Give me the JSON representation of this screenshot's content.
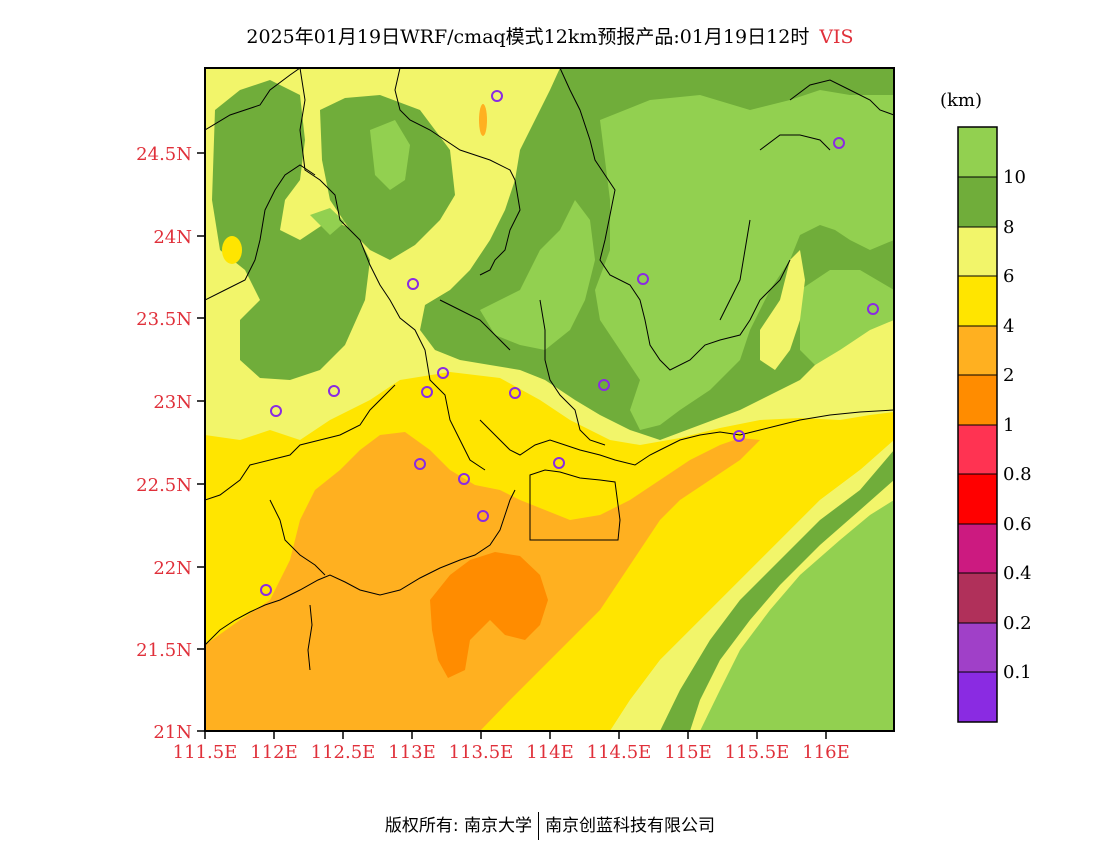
{
  "title": {
    "text": "2025年01月19日WRF/cmaq模式12km预报产品:01月19日12时",
    "variable": "VIS"
  },
  "map": {
    "y_ticks": [
      "24.5N",
      "24N",
      "23.5N",
      "23N",
      "22.5N",
      "22N",
      "21.5N",
      "21N"
    ],
    "x_ticks": [
      "111.5E",
      "112E",
      "112.5E",
      "113E",
      "113.5E",
      "114E",
      "114.5E",
      "115E",
      "115.5E",
      "116E"
    ],
    "colors": {
      "lt10": "#92d050",
      "8_10": "#70ad3a",
      "6_8": "#f2f56a",
      "4_6": "#ffe500",
      "2_4": "#ffb020",
      "1_2": "#ff8c00",
      "boundary": "#000000",
      "station": "#8a2be2"
    },
    "stations_count": 17
  },
  "colorbar": {
    "unit": "(km)",
    "colors": [
      "#92d050",
      "#70ad3a",
      "#f2f56a",
      "#ffe500",
      "#ffb020",
      "#ff8c00",
      "#ff3352",
      "#ff0000",
      "#cc1a80",
      "#b0305a",
      "#a040c8",
      "#8a2be2"
    ],
    "labels": [
      "10",
      "8",
      "6",
      "4",
      "2",
      "1",
      "0.8",
      "0.6",
      "0.4",
      "0.2",
      "0.1"
    ]
  },
  "footer": {
    "left": "版权所有: 南京大学",
    "right": "南京创蓝科技有限公司"
  }
}
